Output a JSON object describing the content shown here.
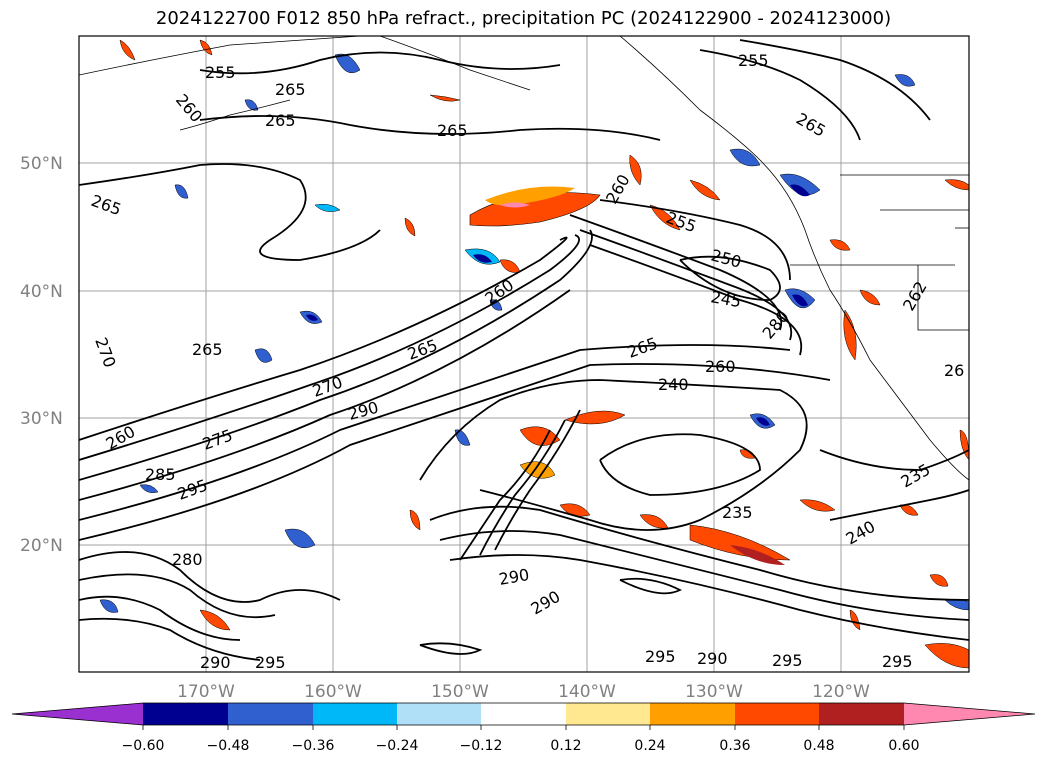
{
  "title": "2024122700 F012 850 hPa refract., precipitation PC (2024122900 - 2024123000)",
  "lat_labels": [
    "50°N",
    "40°N",
    "30°N",
    "20°N"
  ],
  "lon_labels": [
    "170°W",
    "160°W",
    "150°W",
    "140°W",
    "130°W",
    "120°W"
  ],
  "colorbar": {
    "tick_labels": [
      "−0.60",
      "−0.48",
      "−0.36",
      "−0.24",
      "−0.12",
      "0.12",
      "0.24",
      "0.36",
      "0.48",
      "0.60"
    ],
    "colors": [
      "#9b30d0",
      "#000090",
      "#3060d0",
      "#00b8f8",
      "#b0e0f8",
      "#ffffff",
      "#ffe890",
      "#ffa000",
      "#ff4800",
      "#b02020",
      "#ff88b0"
    ]
  },
  "contour_labels": [
    {
      "text": "255"
    },
    {
      "text": "260"
    },
    {
      "text": "265"
    },
    {
      "text": "265"
    },
    {
      "text": "265"
    },
    {
      "text": "265"
    },
    {
      "text": "270"
    },
    {
      "text": "265"
    },
    {
      "text": "260"
    },
    {
      "text": "275"
    },
    {
      "text": "285"
    },
    {
      "text": "295"
    },
    {
      "text": "270"
    },
    {
      "text": "290"
    },
    {
      "text": "265"
    },
    {
      "text": "260"
    },
    {
      "text": "260"
    },
    {
      "text": "255"
    },
    {
      "text": "250"
    },
    {
      "text": "245"
    },
    {
      "text": "280"
    },
    {
      "text": "240"
    },
    {
      "text": "260"
    },
    {
      "text": "265"
    },
    {
      "text": "255"
    },
    {
      "text": "265"
    },
    {
      "text": "235"
    },
    {
      "text": "240"
    },
    {
      "text": "290"
    },
    {
      "text": "295"
    },
    {
      "text": "290"
    },
    {
      "text": "295"
    },
    {
      "text": "295"
    },
    {
      "text": "290"
    },
    {
      "text": "290"
    },
    {
      "text": "295"
    },
    {
      "text": "280"
    },
    {
      "text": "235"
    },
    {
      "text": "262"
    },
    {
      "text": "26"
    }
  ]
}
